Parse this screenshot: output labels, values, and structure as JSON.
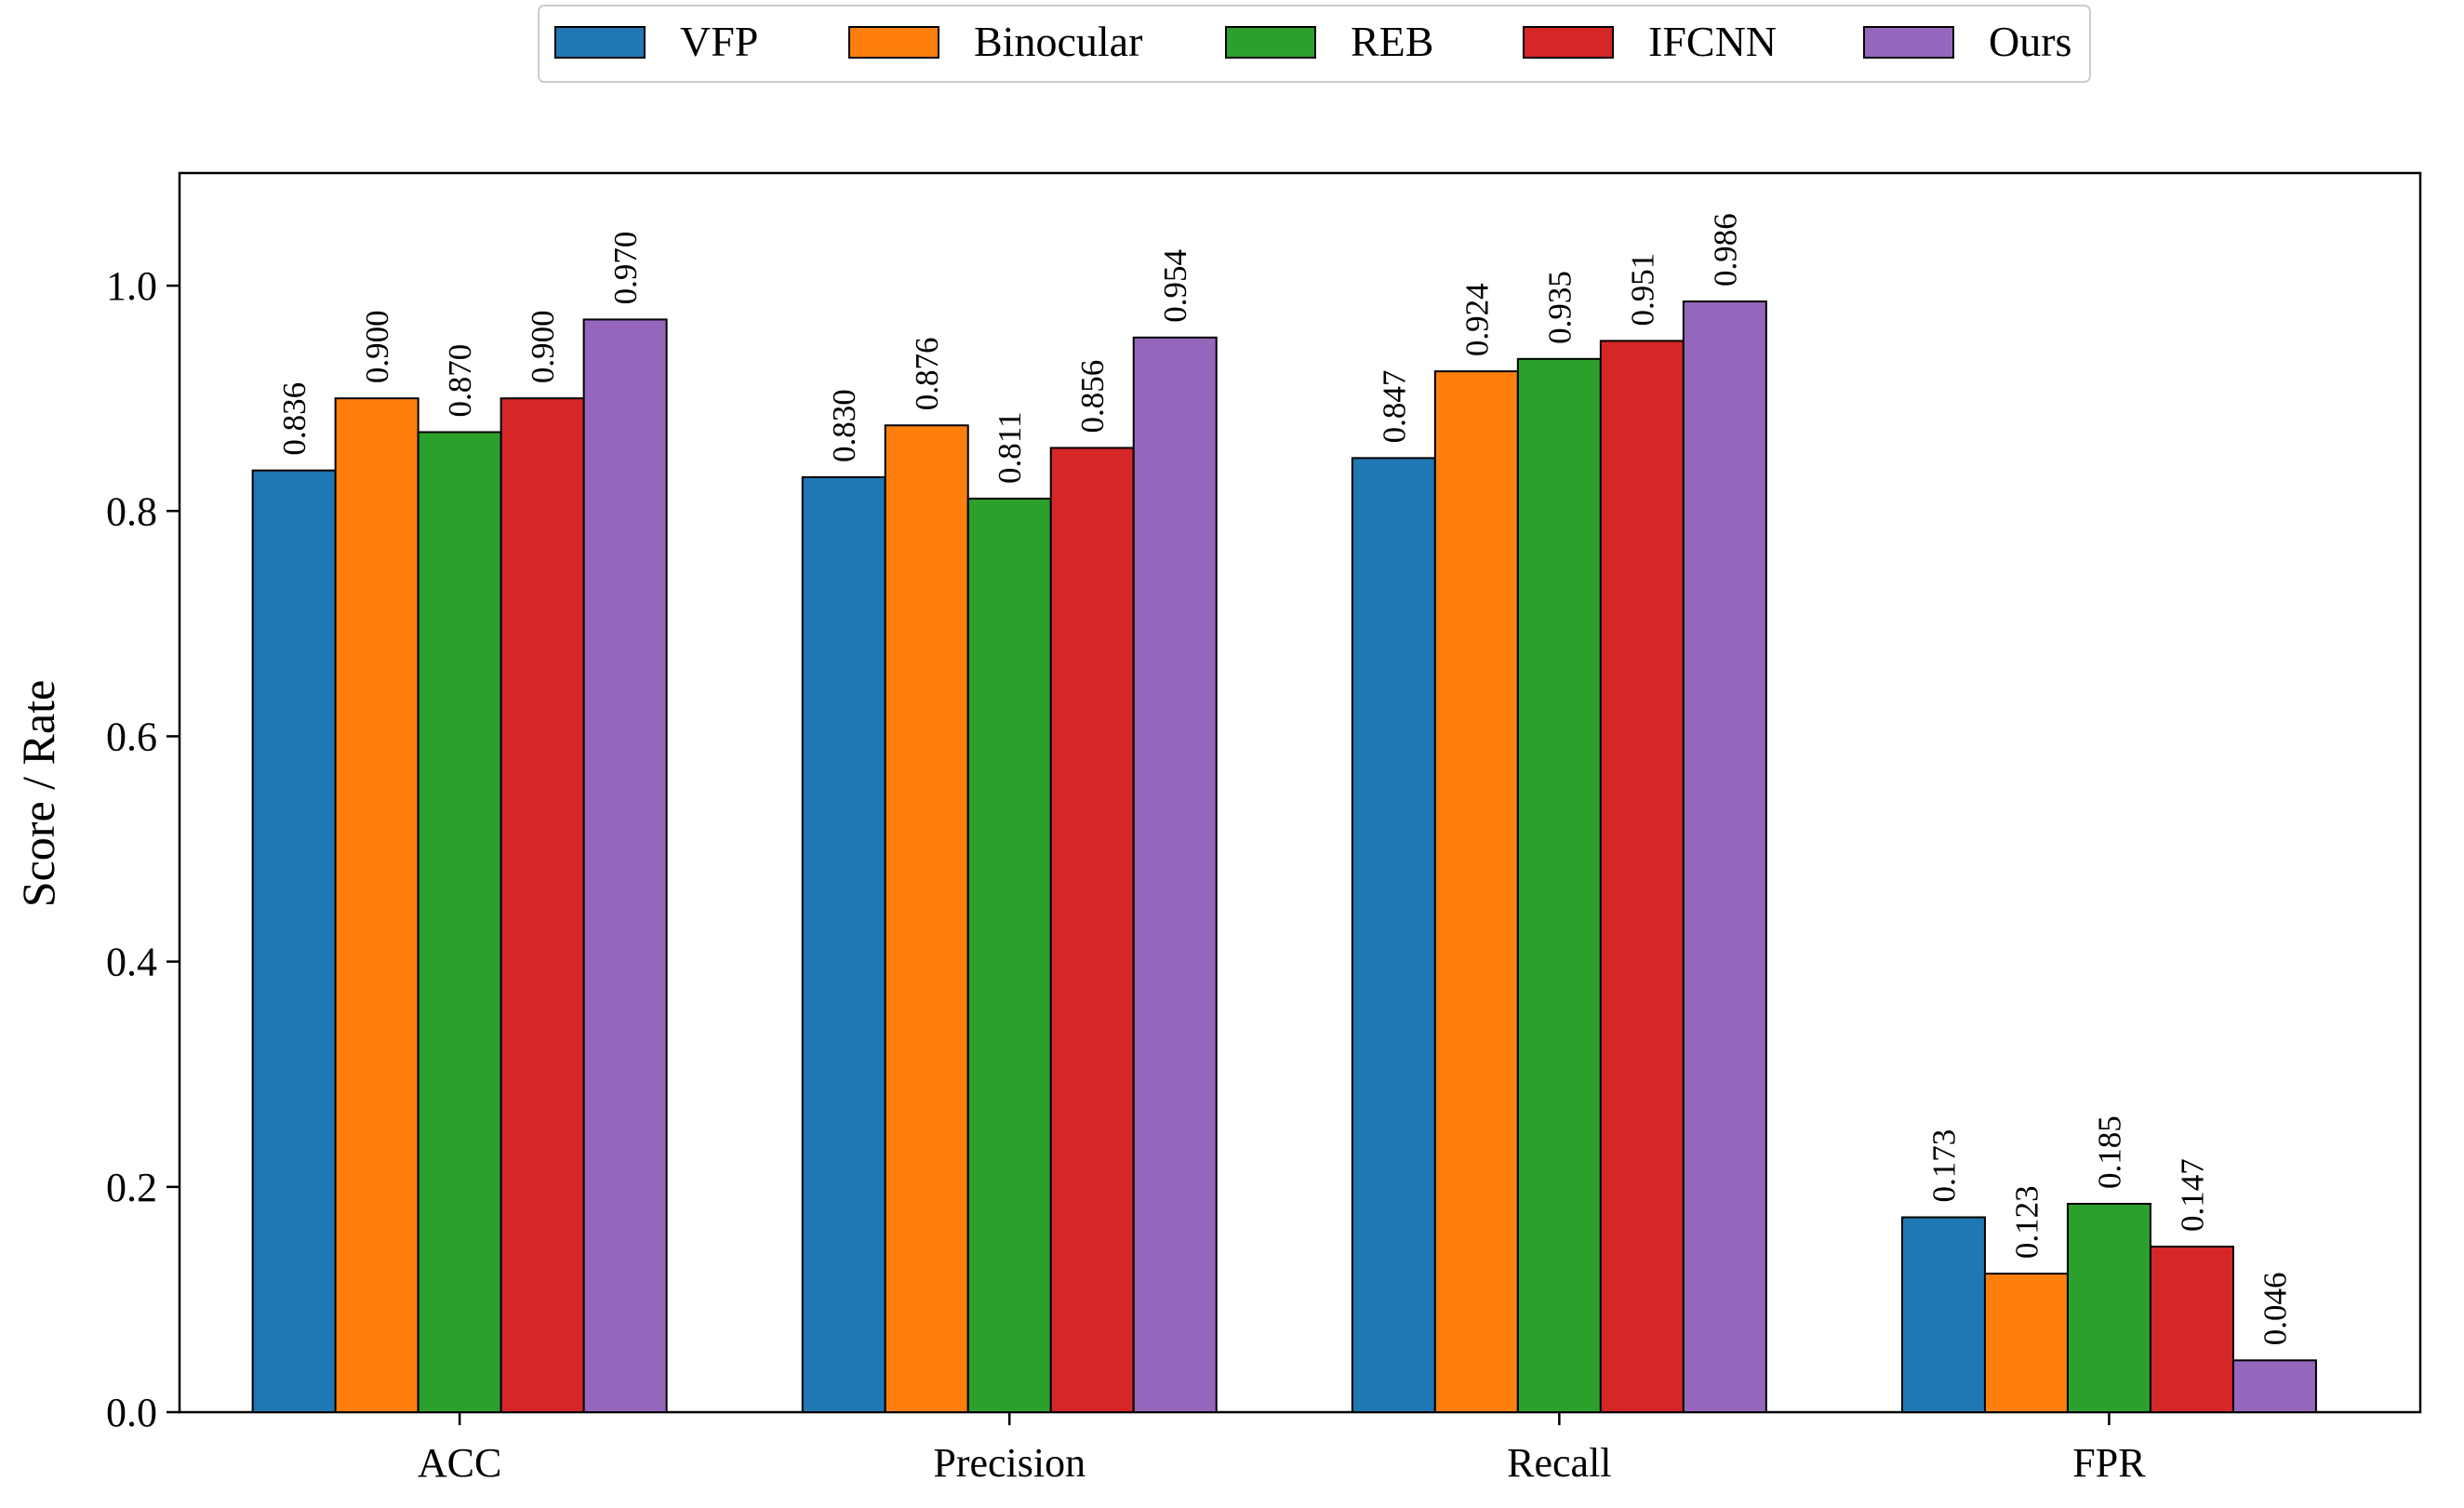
{
  "chart_data": {
    "type": "bar",
    "categories": [
      "ACC",
      "Precision",
      "Recall",
      "FPR"
    ],
    "series": [
      {
        "name": "VFP",
        "color": "#1f77b4",
        "values": [
          0.836,
          0.83,
          0.847,
          0.173
        ],
        "labels": [
          "0.836",
          "0.830",
          "0.847",
          "0.173"
        ]
      },
      {
        "name": "Binocular",
        "color": "#ff7f0e",
        "values": [
          0.9,
          0.876,
          0.924,
          0.123
        ],
        "labels": [
          "0.900",
          "0.876",
          "0.924",
          "0.123"
        ]
      },
      {
        "name": "REB",
        "color": "#2ca02c",
        "values": [
          0.87,
          0.811,
          0.935,
          0.185
        ],
        "labels": [
          "0.870",
          "0.811",
          "0.935",
          "0.185"
        ]
      },
      {
        "name": "IFCNN",
        "color": "#d62728",
        "values": [
          0.9,
          0.856,
          0.951,
          0.147
        ],
        "labels": [
          "0.900",
          "0.856",
          "0.951",
          "0.147"
        ]
      },
      {
        "name": "Ours",
        "color": "#9467bd",
        "values": [
          0.97,
          0.954,
          0.986,
          0.046
        ],
        "labels": [
          "0.970",
          "0.954",
          "0.986",
          "0.046"
        ]
      }
    ],
    "xlabel": "",
    "ylabel": "Score / Rate",
    "ylim": [
      0.0,
      1.1
    ],
    "yticks": [
      "0.0",
      "0.2",
      "0.4",
      "0.6",
      "0.8",
      "1.0"
    ],
    "legend_placement": "top-center, above plot",
    "grid": false
  }
}
